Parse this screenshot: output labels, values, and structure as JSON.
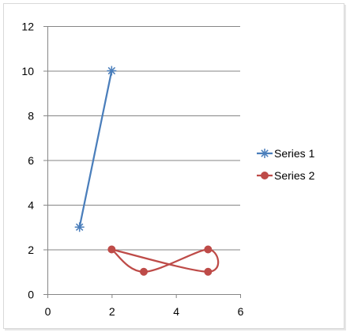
{
  "chart_data": {
    "type": "scatter",
    "title": "",
    "xlabel": "",
    "ylabel": "",
    "xlim": [
      0,
      6
    ],
    "ylim": [
      0,
      12
    ],
    "xticks": [
      0,
      2,
      4,
      6
    ],
    "yticks": [
      0,
      2,
      4,
      6,
      8,
      10,
      12
    ],
    "grid": "horizontal",
    "legend_position": "right",
    "series": [
      {
        "name": "Series 1",
        "color": "#4A7EBB",
        "marker": "star",
        "line": "straight",
        "points": [
          {
            "x": 1,
            "y": 3
          },
          {
            "x": 2,
            "y": 10
          }
        ]
      },
      {
        "name": "Series 2",
        "color": "#BE4B48",
        "marker": "circle",
        "line": "smooth",
        "points": [
          {
            "x": 2,
            "y": 2
          },
          {
            "x": 3,
            "y": 1
          },
          {
            "x": 5,
            "y": 2
          },
          {
            "x": 5,
            "y": 1
          },
          {
            "x": 2,
            "y": 2
          }
        ]
      }
    ]
  }
}
